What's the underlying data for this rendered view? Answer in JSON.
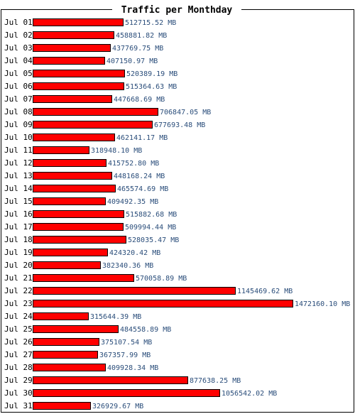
{
  "chart_data": {
    "type": "bar",
    "orientation": "horizontal",
    "title": "Traffic per Monthday",
    "unit": "MB",
    "categories": [
      "Jul 01",
      "Jul 02",
      "Jul 03",
      "Jul 04",
      "Jul 05",
      "Jul 06",
      "Jul 07",
      "Jul 08",
      "Jul 09",
      "Jul 10",
      "Jul 11",
      "Jul 12",
      "Jul 13",
      "Jul 14",
      "Jul 15",
      "Jul 16",
      "Jul 17",
      "Jul 18",
      "Jul 19",
      "Jul 20",
      "Jul 21",
      "Jul 22",
      "Jul 23",
      "Jul 24",
      "Jul 25",
      "Jul 26",
      "Jul 27",
      "Jul 28",
      "Jul 29",
      "Jul 30",
      "Jul 31"
    ],
    "values": [
      512715.52,
      458881.82,
      437769.75,
      407150.97,
      520389.19,
      515364.63,
      447668.69,
      706847.05,
      677693.48,
      462141.17,
      318948.1,
      415752.8,
      448168.24,
      465574.69,
      409492.35,
      515882.68,
      509994.44,
      528035.47,
      424320.42,
      382340.36,
      570058.89,
      1145469.62,
      1472160.1,
      315644.39,
      484558.89,
      375107.54,
      367357.99,
      409928.34,
      877638.25,
      1056542.02,
      326929.67
    ],
    "value_labels": [
      "512715.52 MB",
      "458881.82 MB",
      "437769.75 MB",
      "407150.97 MB",
      "520389.19 MB",
      "515364.63 MB",
      "447668.69 MB",
      "706847.05 MB",
      "677693.48 MB",
      "462141.17 MB",
      "318948.10 MB",
      "415752.80 MB",
      "448168.24 MB",
      "465574.69 MB",
      "409492.35 MB",
      "515882.68 MB",
      "509994.44 MB",
      "528035.47 MB",
      "424320.42 MB",
      "382340.36 MB",
      "570058.89 MB",
      "1145469.62 MB",
      "1472160.10 MB",
      "315644.39 MB",
      "484558.89 MB",
      "375107.54 MB",
      "367357.99 MB",
      "409928.34 MB",
      "877638.25 MB",
      "1056542.02 MB",
      "326929.67 MB"
    ],
    "colors": {
      "bar_fill": "#ff0000",
      "bar_stroke": "#000000",
      "value_text": "#2a4d7a",
      "frame": "#000000"
    }
  }
}
